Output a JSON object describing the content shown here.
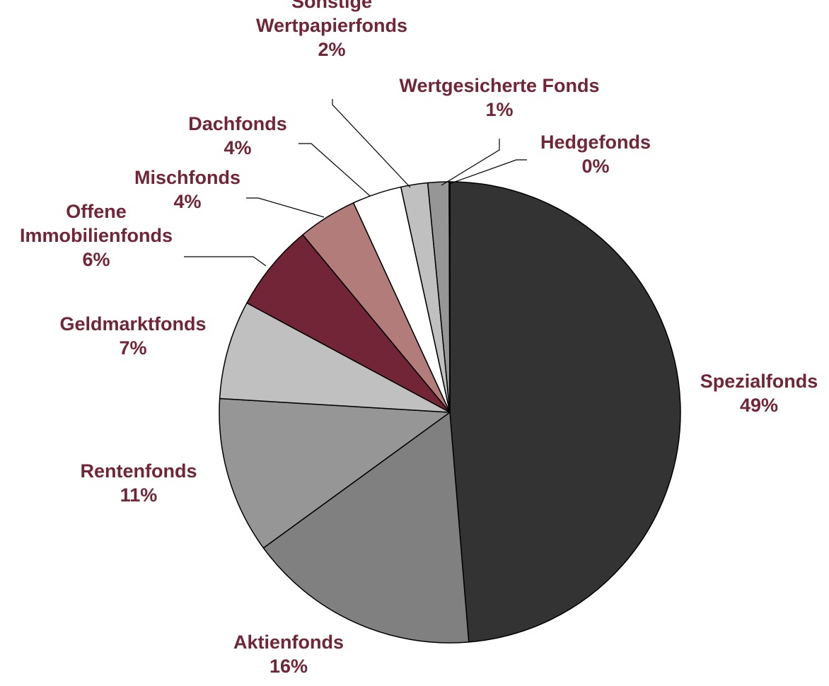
{
  "chart_data": {
    "type": "pie",
    "start_angle_deg": 0,
    "direction": "clockwise",
    "label_color": "#722536",
    "slices": [
      {
        "label_lines": [
          "Spezialfonds"
        ],
        "percent_label": "49%",
        "value": 49.3,
        "color": "#333333"
      },
      {
        "label_lines": [
          "Aktienfonds"
        ],
        "percent_label": "16%",
        "value": 16.5,
        "color": "#808080"
      },
      {
        "label_lines": [
          "Rentenfonds"
        ],
        "percent_label": "11%",
        "value": 11.1,
        "color": "#969696"
      },
      {
        "label_lines": [
          "Geldmarktfonds"
        ],
        "percent_label": "7%",
        "value": 7.0,
        "color": "#c0c0c0"
      },
      {
        "label_lines": [
          "Offene",
          "Immobilienfonds"
        ],
        "percent_label": "6%",
        "value": 6.2,
        "color": "#722536"
      },
      {
        "label_lines": [
          "Mischfonds"
        ],
        "percent_label": "4%",
        "value": 4.2,
        "color": "#b27c7a"
      },
      {
        "label_lines": [
          "Dachfonds"
        ],
        "percent_label": "4%",
        "value": 3.5,
        "color": "#ffffff"
      },
      {
        "label_lines": [
          "Sonstige",
          "Wertpapierfonds"
        ],
        "percent_label": "2%",
        "value": 1.9,
        "color": "#c0c0c0"
      },
      {
        "label_lines": [
          "Wertgesicherte Fonds"
        ],
        "percent_label": "1%",
        "value": 1.5,
        "color": "#969696"
      },
      {
        "label_lines": [
          "Hedgefonds"
        ],
        "percent_label": "0%",
        "value": 0.05,
        "color": "#808080"
      }
    ]
  }
}
